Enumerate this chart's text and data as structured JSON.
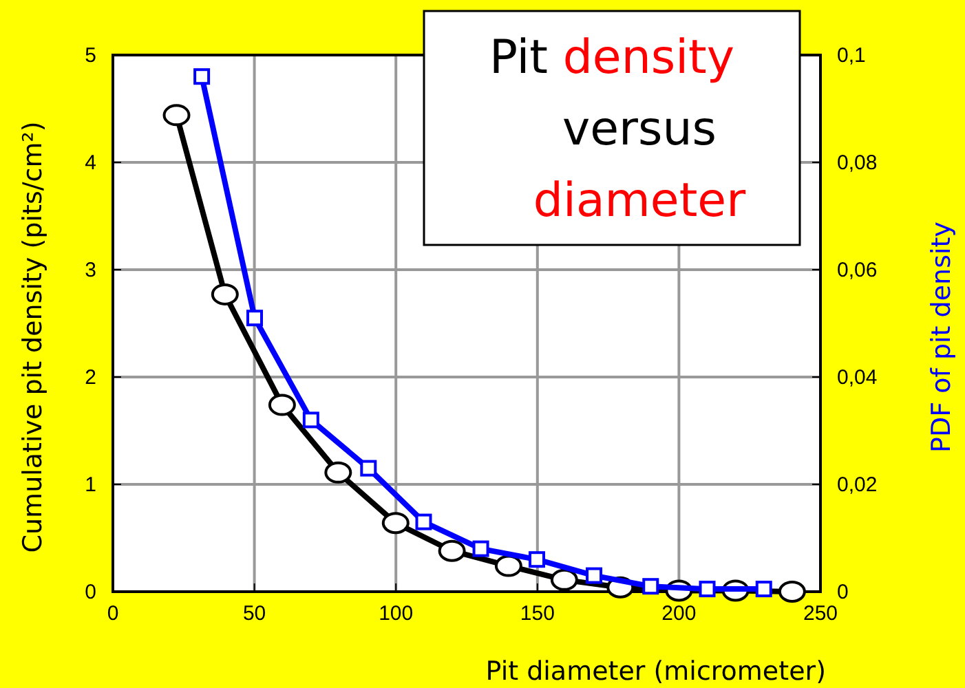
{
  "chart_data": {
    "type": "line",
    "xlabel": "Pit diameter (micrometer)",
    "ylabel": "Cumulative pit density (pits/cm²)",
    "y2label": "PDF of pit density",
    "annotations": [
      "Pit density versus diameter"
    ],
    "series": [
      {
        "color": "#000000",
        "marker": "circle",
        "x": [
          22.5,
          39.6,
          59.8,
          79.6,
          99.9,
          119.8,
          139.8,
          159.5,
          179.3,
          200,
          220,
          240
        ],
        "values": [
          4.44,
          2.77,
          1.74,
          1.11,
          0.64,
          0.38,
          0.24,
          0.11,
          0.04,
          0.01,
          0.01,
          0
        ]
      },
      {
        "color": "#0000ff",
        "marker": "square",
        "axis": "y2",
        "x": [
          31.4,
          50.1,
          70,
          90.3,
          109.8,
          130,
          149.8,
          170,
          190,
          210,
          230
        ],
        "values": [
          0.096,
          0.051,
          0.032,
          0.023,
          0.013,
          0.008,
          0.006,
          0.003,
          0.001,
          0.0005,
          0.0005
        ]
      }
    ],
    "xlim": [
      0,
      250
    ],
    "xticks": [
      0,
      50,
      100,
      150,
      200,
      250
    ],
    "ylim": [
      0,
      5
    ],
    "yticks": [
      0,
      1,
      2,
      3,
      4,
      5
    ],
    "y2lim": [
      0,
      0.1
    ],
    "y2ticks": [
      {
        "value": 0,
        "label": "0"
      },
      {
        "value": 0.02,
        "label": "0,02"
      },
      {
        "value": 0.04,
        "label": "0,04"
      },
      {
        "value": 0.06,
        "label": "0,06"
      },
      {
        "value": 0.08,
        "label": "0,08"
      },
      {
        "value": 0.1,
        "label": "0,1"
      }
    ],
    "grid": true,
    "line_style": "solid"
  }
}
